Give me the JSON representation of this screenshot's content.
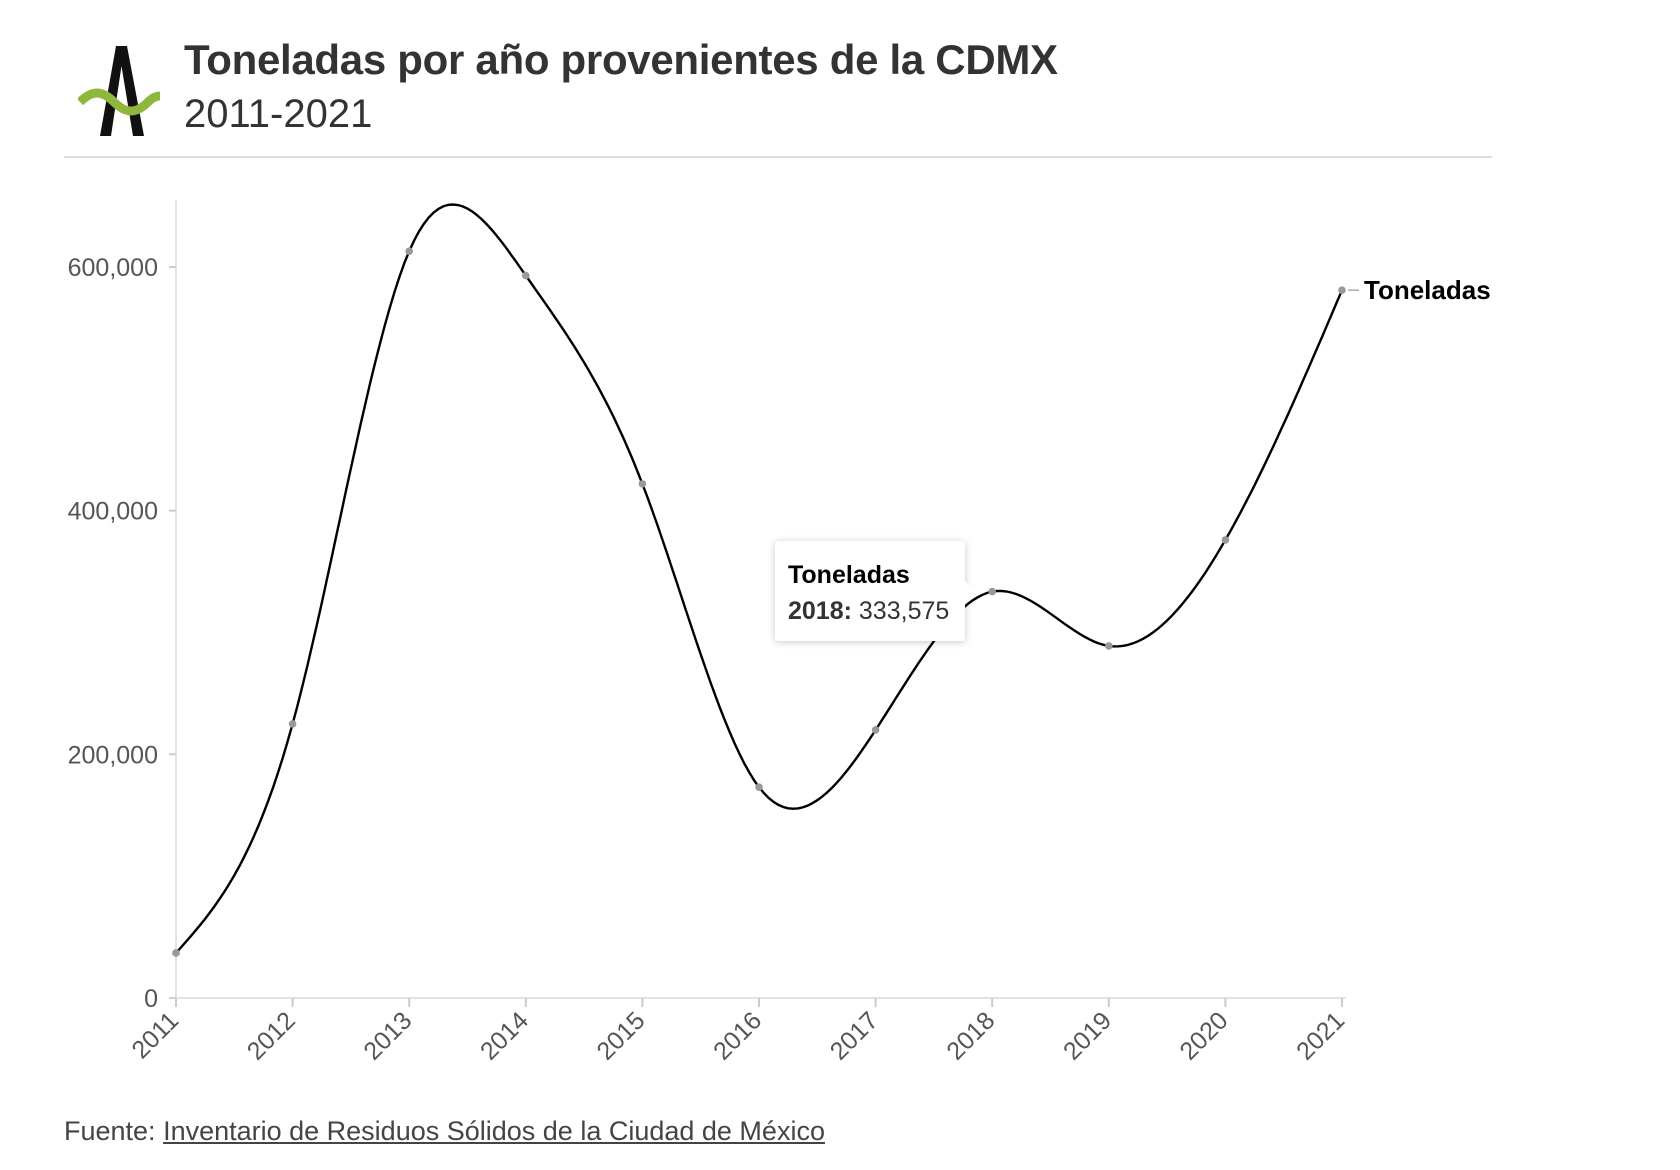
{
  "header": {
    "title": "Toneladas por año provenientes de la CDMX",
    "subtitle": "2011-2021"
  },
  "chart_data": {
    "type": "line",
    "title": "Toneladas por año provenientes de la CDMX",
    "subtitle": "2011-2021",
    "xlabel": "",
    "ylabel": "",
    "x": [
      "2011",
      "2012",
      "2013",
      "2014",
      "2015",
      "2016",
      "2017",
      "2018",
      "2019",
      "2020",
      "2021"
    ],
    "series": [
      {
        "name": "Toneladas",
        "values": [
          37000,
          225000,
          613000,
          593000,
          422000,
          173000,
          220000,
          333575,
          289000,
          376000,
          581000
        ]
      }
    ],
    "ylim": [
      0,
      655000
    ],
    "yticks": [
      0,
      200000,
      400000,
      600000
    ],
    "ytick_labels": [
      "0",
      "200,000",
      "400,000",
      "600,000"
    ],
    "grid": false,
    "line_color": "#000000",
    "marker_color": "#999999",
    "curve": "smooth",
    "legend": "direct label at end of line"
  },
  "tooltip": {
    "series": "Toneladas",
    "year": "2018:",
    "value": "333,575"
  },
  "footer": {
    "prefix": "Fuente: ",
    "source_text": "Inventario de Residuos Sólidos de la Ciudad de México"
  },
  "colors": {
    "logo_black": "#111111",
    "logo_green": "#8fb73e"
  }
}
